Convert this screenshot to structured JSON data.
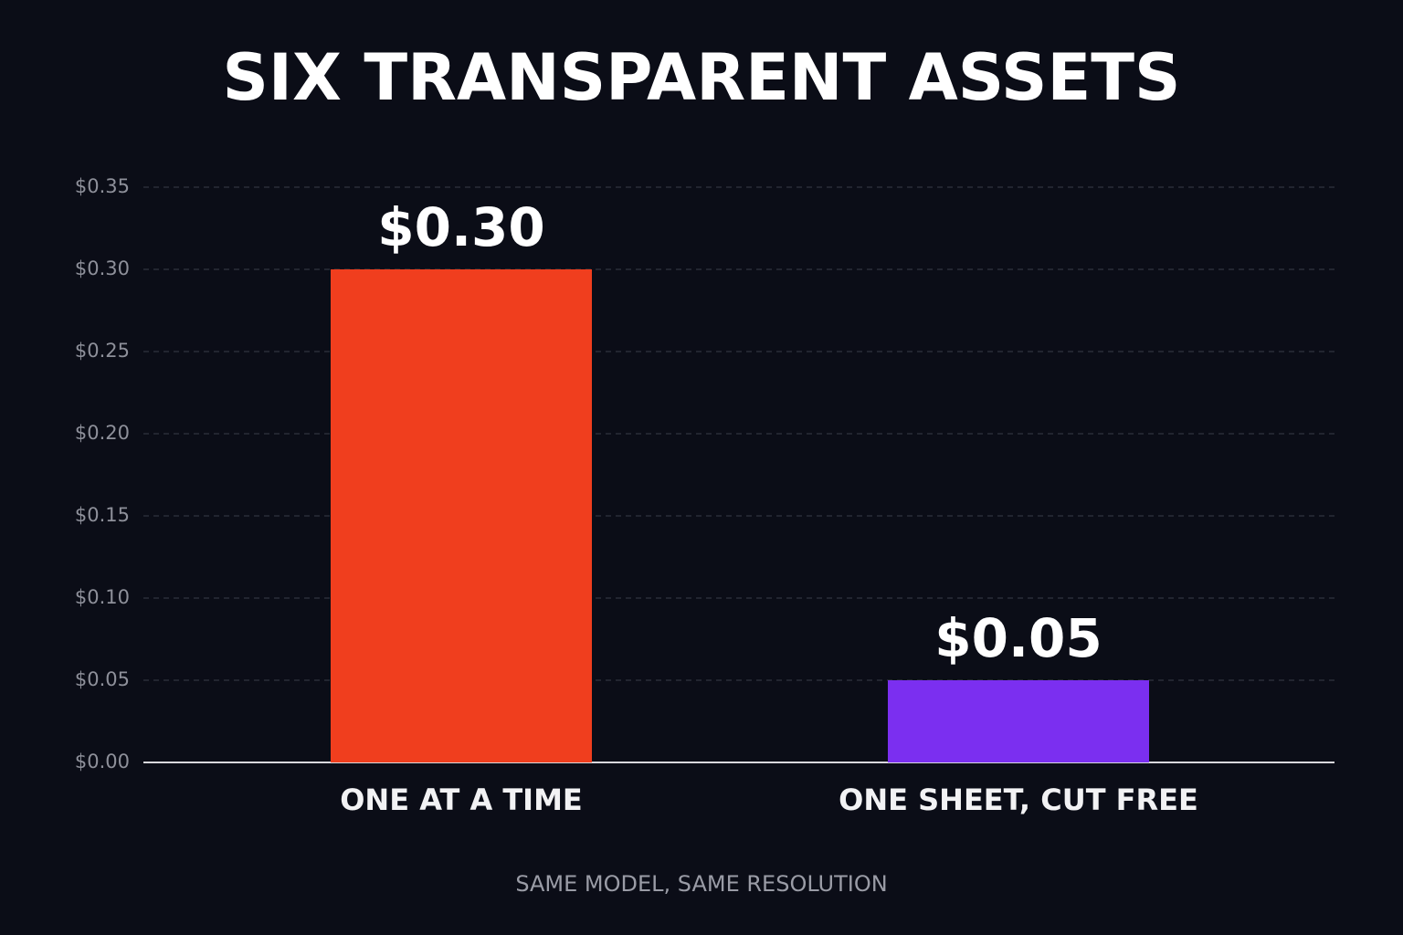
{
  "chart_data": {
    "type": "bar",
    "title": "SIX TRANSPARENT ASSETS",
    "categories": [
      "ONE AT A TIME",
      "ONE SHEET, CUT FREE"
    ],
    "values": [
      0.3,
      0.05
    ],
    "value_labels": [
      "$0.30",
      "$0.05"
    ],
    "colors": [
      "#f03e1e",
      "#7b2ff0"
    ],
    "ylim": [
      0,
      0.35
    ],
    "yticks": [
      {
        "value": 0,
        "label": "$0.00"
      },
      {
        "value": 0.05,
        "label": "$0.05"
      },
      {
        "value": 0.1,
        "label": "$0.10"
      },
      {
        "value": 0.15,
        "label": "$0.15"
      },
      {
        "value": 0.2,
        "label": "$0.20"
      },
      {
        "value": 0.25,
        "label": "$0.25"
      },
      {
        "value": 0.3,
        "label": "$0.30"
      },
      {
        "value": 0.35,
        "label": "$0.35"
      }
    ],
    "grid": true,
    "footnote": "SAME MODEL, SAME RESOLUTION"
  }
}
